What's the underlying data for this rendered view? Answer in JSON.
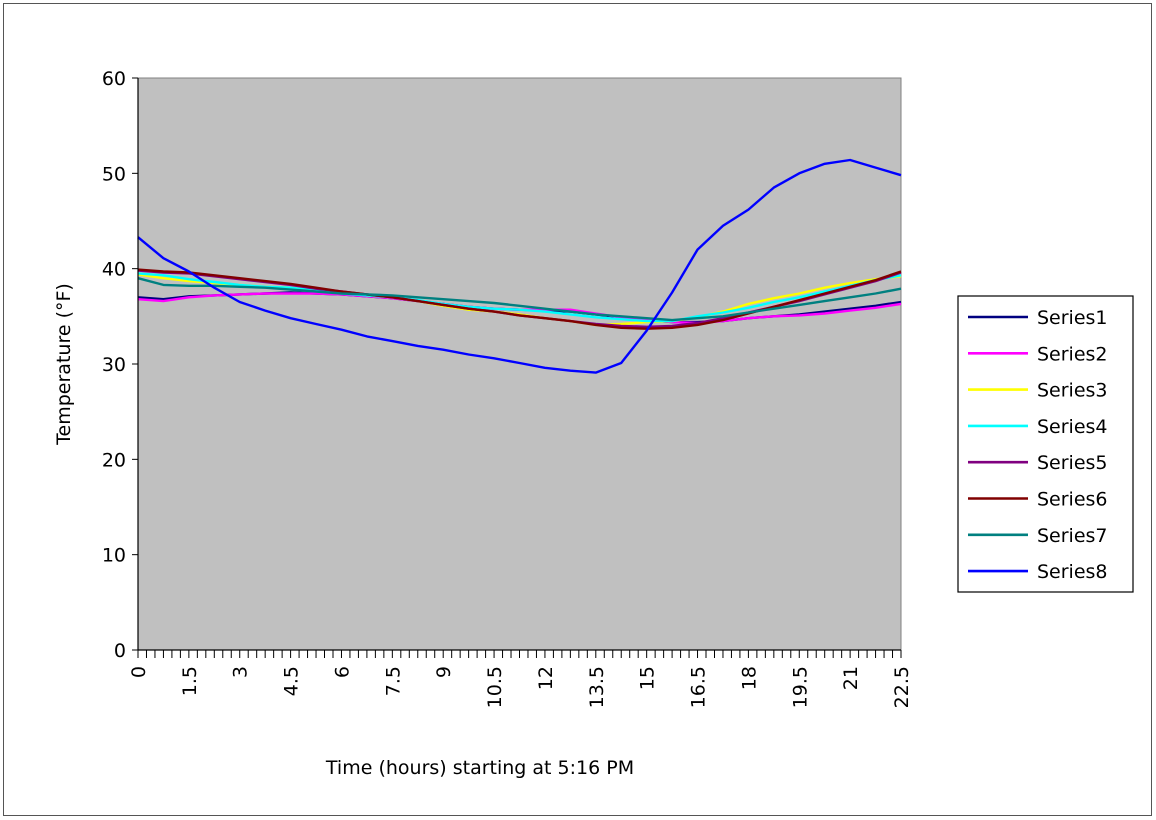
{
  "chart_data": {
    "type": "line",
    "xlabel": "Time (hours) starting at 5:16 PM",
    "ylabel": "Temperature (°F)",
    "xlim": [
      0,
      22.5
    ],
    "ylim": [
      0,
      60
    ],
    "y_ticks": [
      0,
      10,
      20,
      30,
      40,
      50,
      60
    ],
    "x_tick_labels": [
      "0",
      "1.5",
      "3",
      "4.5",
      "6",
      "7.5",
      "9",
      "10.5",
      "12",
      "13.5",
      "15",
      "16.5",
      "18",
      "19.5",
      "21",
      "22.5"
    ],
    "grid": false,
    "legend_position": "right",
    "plot_background": "#c0c0c0",
    "x": [
      0,
      0.75,
      1.5,
      2.25,
      3,
      3.75,
      4.5,
      5.25,
      6,
      6.75,
      7.5,
      8.25,
      9,
      9.75,
      10.5,
      11.25,
      12,
      12.75,
      13.5,
      14.25,
      15,
      15.75,
      16.5,
      17.25,
      18,
      18.75,
      19.5,
      20.25,
      21,
      21.75,
      22.5
    ],
    "series": [
      {
        "name": "Series1",
        "color": "#000080",
        "values": [
          37.0,
          36.8,
          37.1,
          37.2,
          37.3,
          37.4,
          37.5,
          37.4,
          37.3,
          37.1,
          36.9,
          36.6,
          36.3,
          36.0,
          35.8,
          35.7,
          35.6,
          35.5,
          35.2,
          34.9,
          34.6,
          34.4,
          34.4,
          34.5,
          34.8,
          35.0,
          35.2,
          35.5,
          35.8,
          36.1,
          36.5
        ]
      },
      {
        "name": "Series2",
        "color": "#ff00ff",
        "values": [
          36.8,
          36.6,
          37.0,
          37.2,
          37.3,
          37.4,
          37.4,
          37.4,
          37.3,
          37.1,
          36.9,
          36.6,
          36.3,
          36.0,
          35.8,
          35.7,
          35.7,
          35.7,
          35.3,
          34.9,
          34.6,
          34.4,
          34.3,
          34.5,
          34.8,
          35.0,
          35.1,
          35.3,
          35.6,
          35.9,
          36.3
        ]
      },
      {
        "name": "Series3",
        "color": "#ffff00",
        "values": [
          39.4,
          39.0,
          38.7,
          38.5,
          38.3,
          38.1,
          38.0,
          37.8,
          37.5,
          37.2,
          37.0,
          36.6,
          36.1,
          35.7,
          35.5,
          35.2,
          34.8,
          34.5,
          34.1,
          34.2,
          34.4,
          34.5,
          34.9,
          35.5,
          36.3,
          36.9,
          37.4,
          38.0,
          38.5,
          38.9,
          39.2
        ]
      },
      {
        "name": "Series4",
        "color": "#00ffff",
        "values": [
          39.5,
          39.3,
          38.9,
          38.6,
          38.3,
          38.1,
          38.0,
          37.7,
          37.4,
          37.2,
          37.0,
          36.7,
          36.3,
          36.0,
          35.8,
          35.7,
          35.5,
          35.2,
          34.9,
          34.7,
          34.5,
          34.5,
          35.0,
          35.4,
          35.9,
          36.5,
          37.0,
          37.6,
          38.2,
          38.8,
          39.3
        ]
      },
      {
        "name": "Series5",
        "color": "#800080",
        "values": [
          39.8,
          39.6,
          39.5,
          39.2,
          38.9,
          38.6,
          38.3,
          37.9,
          37.6,
          37.3,
          37.0,
          36.6,
          36.2,
          35.8,
          35.5,
          35.1,
          34.8,
          34.5,
          34.2,
          34.0,
          33.9,
          34.0,
          34.3,
          34.8,
          35.4,
          36.0,
          36.6,
          37.3,
          38.0,
          38.7,
          39.6
        ]
      },
      {
        "name": "Series6",
        "color": "#800000",
        "values": [
          39.9,
          39.7,
          39.6,
          39.3,
          39.0,
          38.7,
          38.4,
          38.0,
          37.6,
          37.3,
          37.0,
          36.6,
          36.2,
          35.8,
          35.5,
          35.1,
          34.8,
          34.5,
          34.1,
          33.8,
          33.7,
          33.8,
          34.1,
          34.6,
          35.3,
          36.0,
          36.7,
          37.4,
          38.1,
          38.8,
          39.7
        ]
      },
      {
        "name": "Series7",
        "color": "#008080",
        "values": [
          39.0,
          38.3,
          38.2,
          38.2,
          38.1,
          38.0,
          37.8,
          37.6,
          37.4,
          37.3,
          37.2,
          37.0,
          36.8,
          36.6,
          36.4,
          36.1,
          35.8,
          35.5,
          35.2,
          35.0,
          34.8,
          34.6,
          34.8,
          35.0,
          35.4,
          35.8,
          36.2,
          36.6,
          37.0,
          37.4,
          37.9
        ]
      },
      {
        "name": "Series8",
        "color": "#0000ff",
        "values": [
          43.3,
          41.1,
          39.7,
          38.0,
          36.5,
          35.6,
          34.8,
          34.2,
          33.6,
          32.9,
          32.4,
          31.9,
          31.5,
          31.0,
          30.6,
          30.1,
          29.6,
          29.3,
          29.1,
          30.1,
          33.5,
          37.5,
          42.0,
          44.5,
          46.2,
          48.5,
          50.0,
          51.0,
          51.4,
          50.6,
          49.8
        ]
      }
    ]
  }
}
